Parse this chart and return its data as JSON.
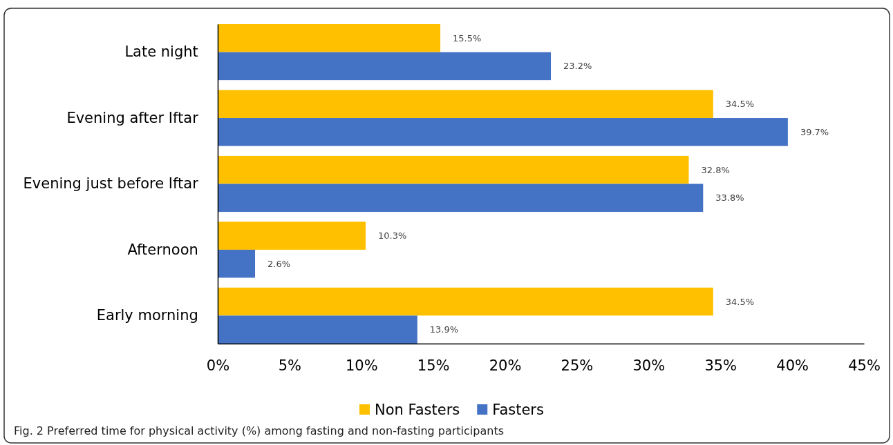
{
  "chart_data": {
    "type": "bar",
    "orientation": "horizontal",
    "categories": [
      "Late night",
      "Evening after Iftar",
      "Evening just before Iftar",
      "Afternoon",
      "Early morning"
    ],
    "series": [
      {
        "name": "Non Fasters",
        "color": "#ffc000",
        "values": [
          15.5,
          34.5,
          32.8,
          10.3,
          34.5
        ],
        "value_labels": [
          "15.5%",
          "34.5%",
          "32.8%",
          "10.3%",
          "34.5%"
        ]
      },
      {
        "name": "Fasters",
        "color": "#4472c4",
        "values": [
          23.2,
          39.7,
          33.8,
          2.6,
          13.9
        ],
        "value_labels": [
          "23.2%",
          "39.7%",
          "33.8%",
          "2.6%",
          "13.9%"
        ]
      }
    ],
    "xlim": [
      0,
      45
    ],
    "xticks": [
      {
        "value": 0,
        "label": "0%"
      },
      {
        "value": 5,
        "label": "5%"
      },
      {
        "value": 10,
        "label": "10%"
      },
      {
        "value": 15,
        "label": "15%"
      },
      {
        "value": 20,
        "label": "20%"
      },
      {
        "value": 25,
        "label": "25%"
      },
      {
        "value": 30,
        "label": "30%"
      },
      {
        "value": 35,
        "label": "35%"
      },
      {
        "value": 40,
        "label": "40%"
      },
      {
        "value": 45,
        "label": "45%"
      }
    ],
    "grid": false,
    "legend": "bottom",
    "annotations": [
      "Fig. 2 Preferred time for physical activity (%) among fasting and non-fasting participants"
    ]
  }
}
